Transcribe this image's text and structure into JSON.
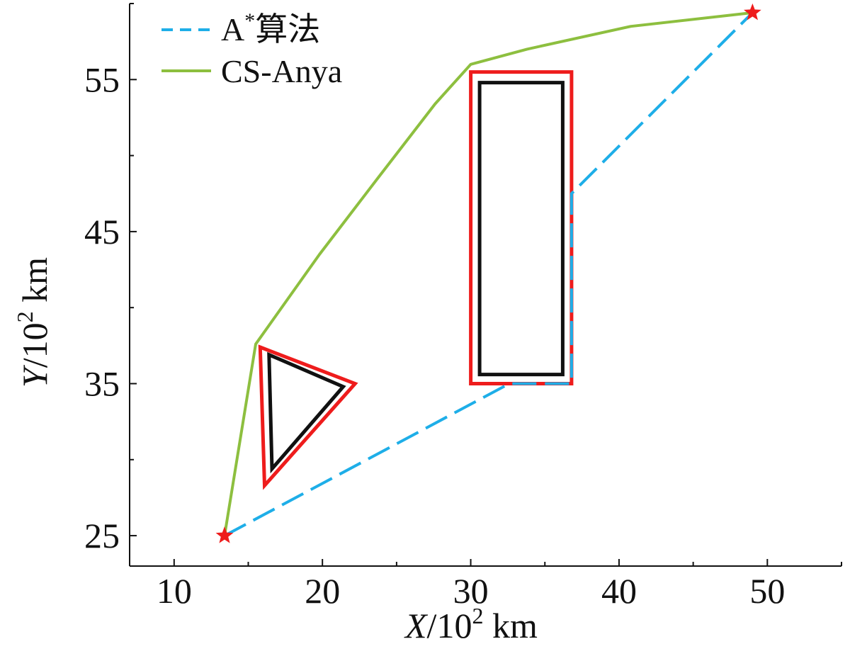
{
  "chart_data": {
    "type": "line",
    "title": "",
    "xlabel": {
      "var": "X",
      "unit": "/10",
      "exp": "2",
      "suffix": " km"
    },
    "ylabel": {
      "var": "Y",
      "unit": "/10",
      "exp": "2",
      "suffix": " km"
    },
    "xlim": [
      7,
      55
    ],
    "ylim": [
      23,
      60
    ],
    "xticks": [
      10,
      20,
      30,
      40,
      50
    ],
    "yticks": [
      25,
      35,
      45,
      55
    ],
    "grid": false,
    "legend_position": "top-left",
    "colors": {
      "astar": "#1EAEE8",
      "csanya": "#8DBF3F",
      "buffer": "#EE1C1C",
      "obstacle": "#111111",
      "marker": "#EE1C1C"
    },
    "series": [
      {
        "name": "A*算法",
        "legend_main": "A",
        "legend_sup": "*",
        "legend_rest": "算法",
        "style": "dashed",
        "points": [
          [
            13.4,
            25.0
          ],
          [
            32.6,
            35.0
          ],
          [
            36.8,
            35.0
          ],
          [
            36.8,
            47.5
          ],
          [
            49.0,
            59.4
          ]
        ]
      },
      {
        "name": "CS-Anya",
        "style": "solid",
        "points": [
          [
            13.4,
            25.0
          ],
          [
            15.5,
            37.6
          ],
          [
            19.8,
            43.5
          ],
          [
            23.8,
            48.6
          ],
          [
            27.6,
            53.4
          ],
          [
            30.0,
            56.0
          ],
          [
            33.8,
            57.0
          ],
          [
            40.8,
            58.5
          ],
          [
            49.0,
            59.4
          ]
        ]
      }
    ],
    "obstacles": [
      {
        "name": "triangle-obstacle-buffer",
        "kind": "buffer",
        "points": [
          [
            15.8,
            37.4
          ],
          [
            22.2,
            35.0
          ],
          [
            16.1,
            28.3
          ]
        ]
      },
      {
        "name": "triangle-obstacle",
        "kind": "obstacle",
        "points": [
          [
            16.4,
            36.9
          ],
          [
            21.4,
            34.8
          ],
          [
            16.6,
            29.4
          ]
        ]
      },
      {
        "name": "rectangle-obstacle-buffer",
        "kind": "buffer",
        "points": [
          [
            30.0,
            55.5
          ],
          [
            36.8,
            55.5
          ],
          [
            36.8,
            35.0
          ],
          [
            30.0,
            35.0
          ]
        ]
      },
      {
        "name": "rectangle-obstacle",
        "kind": "obstacle",
        "points": [
          [
            30.6,
            54.8
          ],
          [
            36.2,
            54.8
          ],
          [
            36.2,
            35.6
          ],
          [
            30.6,
            35.6
          ]
        ]
      }
    ],
    "markers": [
      {
        "name": "start-marker",
        "point": [
          13.4,
          25.0
        ]
      },
      {
        "name": "goal-marker",
        "point": [
          49.0,
          59.4
        ]
      }
    ]
  }
}
